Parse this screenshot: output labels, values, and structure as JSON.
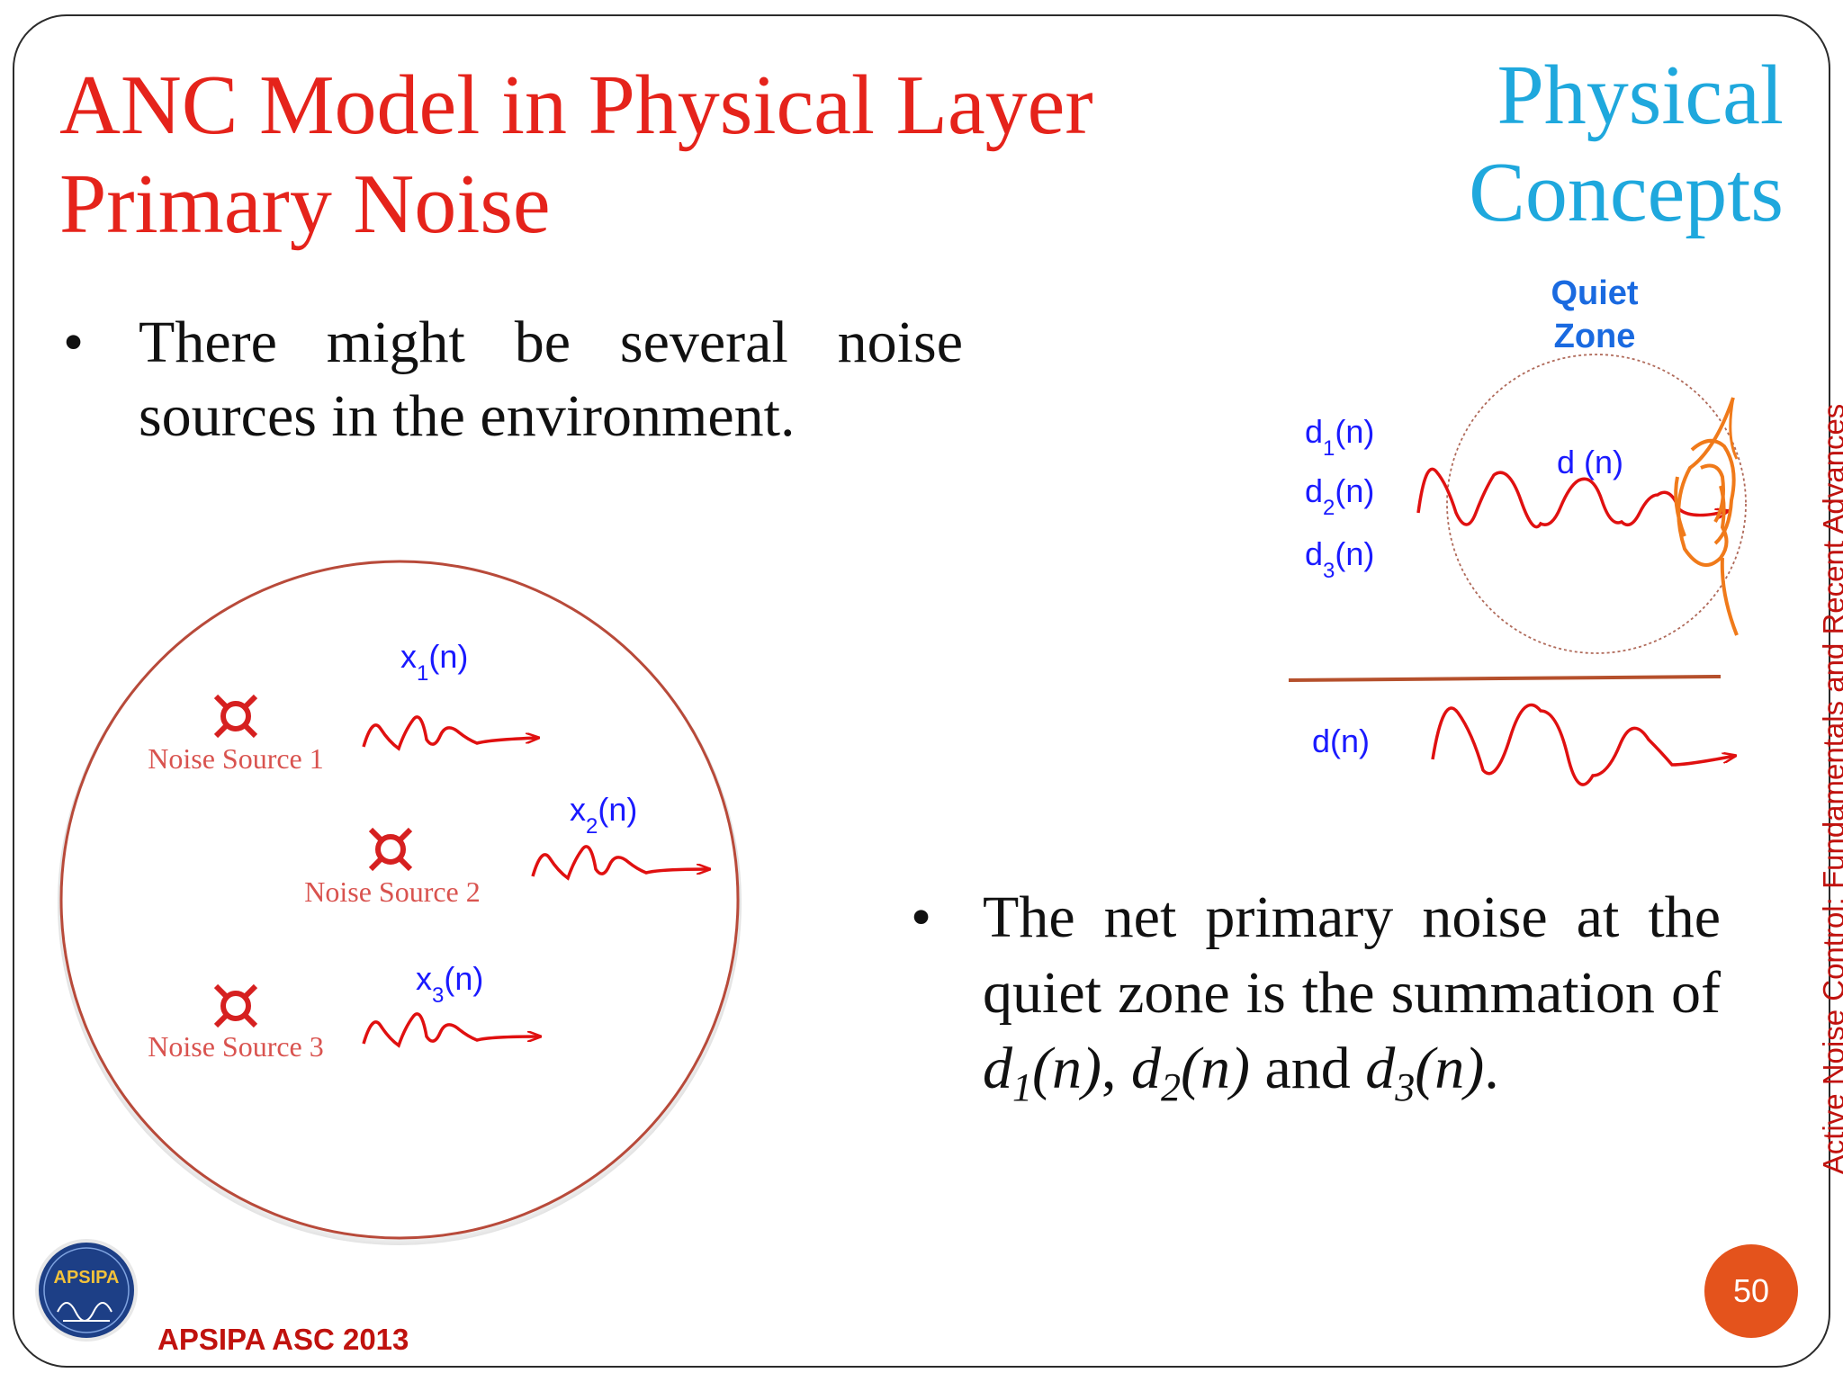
{
  "slide": {
    "title_line1": "ANC Model in Physical Layer",
    "title_line2": "Primary Noise",
    "section_line1": "Physical",
    "section_line2": "Concepts",
    "side_text": "Active Noise Control: Fundamentals and Recent Advances",
    "page_number": "50",
    "footer": "APSIPA ASC 2013"
  },
  "bullets": [
    {
      "text": "There might be several noise sources in the environment."
    },
    {
      "prefix": "The net primary noise at the quiet zone is the summation of ",
      "d1": "d",
      "d1_sub": "1",
      "d1_suffix": "(n)",
      "sep1": ", ",
      "d2": "d",
      "d2_sub": "2",
      "d2_suffix": "(n)",
      "sep2": " and ",
      "d3": "d",
      "d3_sub": "3",
      "d3_suffix": "(n)",
      "end": "."
    }
  ],
  "left_diagram": {
    "sources": [
      {
        "label": "Noise Source 1",
        "signal": "x",
        "sub": "1",
        "suffix": "(n)"
      },
      {
        "label": "Noise Source 2",
        "signal": "x",
        "sub": "2",
        "suffix": "(n)"
      },
      {
        "label": "Noise Source 3",
        "signal": "x",
        "sub": "3",
        "suffix": "(n)"
      }
    ]
  },
  "right_diagram": {
    "quiet_zone_line1": "Quiet",
    "quiet_zone_line2": "Zone",
    "inputs": [
      {
        "signal": "d",
        "sub": "1",
        "suffix": "(n)"
      },
      {
        "signal": "d",
        "sub": "2",
        "suffix": "(n)"
      },
      {
        "signal": "d",
        "sub": "3",
        "suffix": "(n)"
      }
    ],
    "combined_label": "d (n)",
    "output_label": "d(n)"
  },
  "logo": {
    "text": "APSIPA"
  },
  "colors": {
    "title": "#e5231b",
    "section": "#1fa8dd",
    "signal_label": "#1a1aff",
    "wave": "#e01010",
    "ear": "#f07a1a",
    "badge": "#e4531c"
  }
}
